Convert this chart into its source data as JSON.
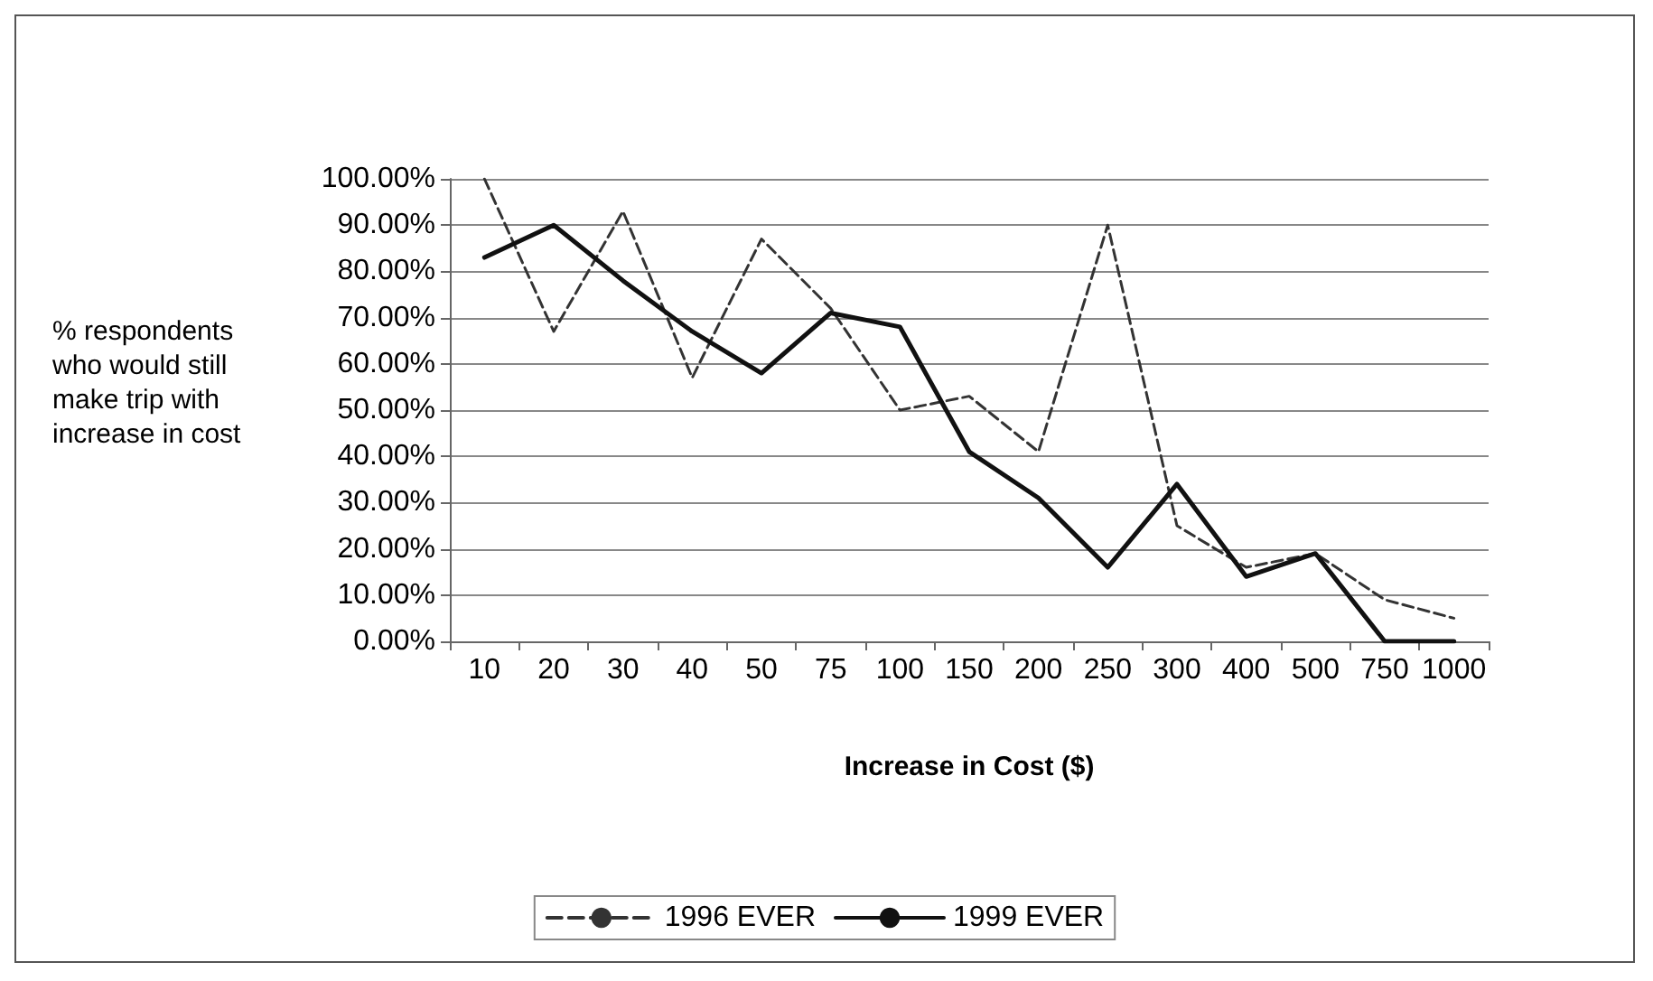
{
  "chart_data": {
    "type": "line",
    "xlabel": "Increase in Cost ($)",
    "ylabel": "% respondents who would still make trip with increase in cost",
    "categories": [
      "10",
      "20",
      "30",
      "40",
      "50",
      "75",
      "100",
      "150",
      "200",
      "250",
      "300",
      "400",
      "500",
      "750",
      "1000"
    ],
    "series": [
      {
        "name": "1996 EVER",
        "color": "#333333",
        "line_style": "dashed",
        "values": [
          100,
          67,
          93,
          57,
          87,
          72,
          50,
          53,
          41,
          90,
          25,
          16,
          19,
          9,
          5
        ]
      },
      {
        "name": "1999 EVER",
        "color": "#111111",
        "line_style": "solid",
        "values": [
          83,
          90,
          78,
          67,
          58,
          71,
          68,
          41,
          31,
          16,
          34,
          14,
          19,
          0,
          0
        ]
      }
    ],
    "ylim": [
      0,
      100
    ],
    "yticks": [
      {
        "value": 0,
        "label": "0.00%"
      },
      {
        "value": 10,
        "label": "10.00%"
      },
      {
        "value": 20,
        "label": "20.00%"
      },
      {
        "value": 30,
        "label": "30.00%"
      },
      {
        "value": 40,
        "label": "40.00%"
      },
      {
        "value": 50,
        "label": "50.00%"
      },
      {
        "value": 60,
        "label": "60.00%"
      },
      {
        "value": 70,
        "label": "70.00%"
      },
      {
        "value": 80,
        "label": "80.00%"
      },
      {
        "value": 90,
        "label": "90.00%"
      },
      {
        "value": 100,
        "label": "100.00%"
      }
    ],
    "grid": "y",
    "legend": "bottom",
    "marker": "none"
  }
}
